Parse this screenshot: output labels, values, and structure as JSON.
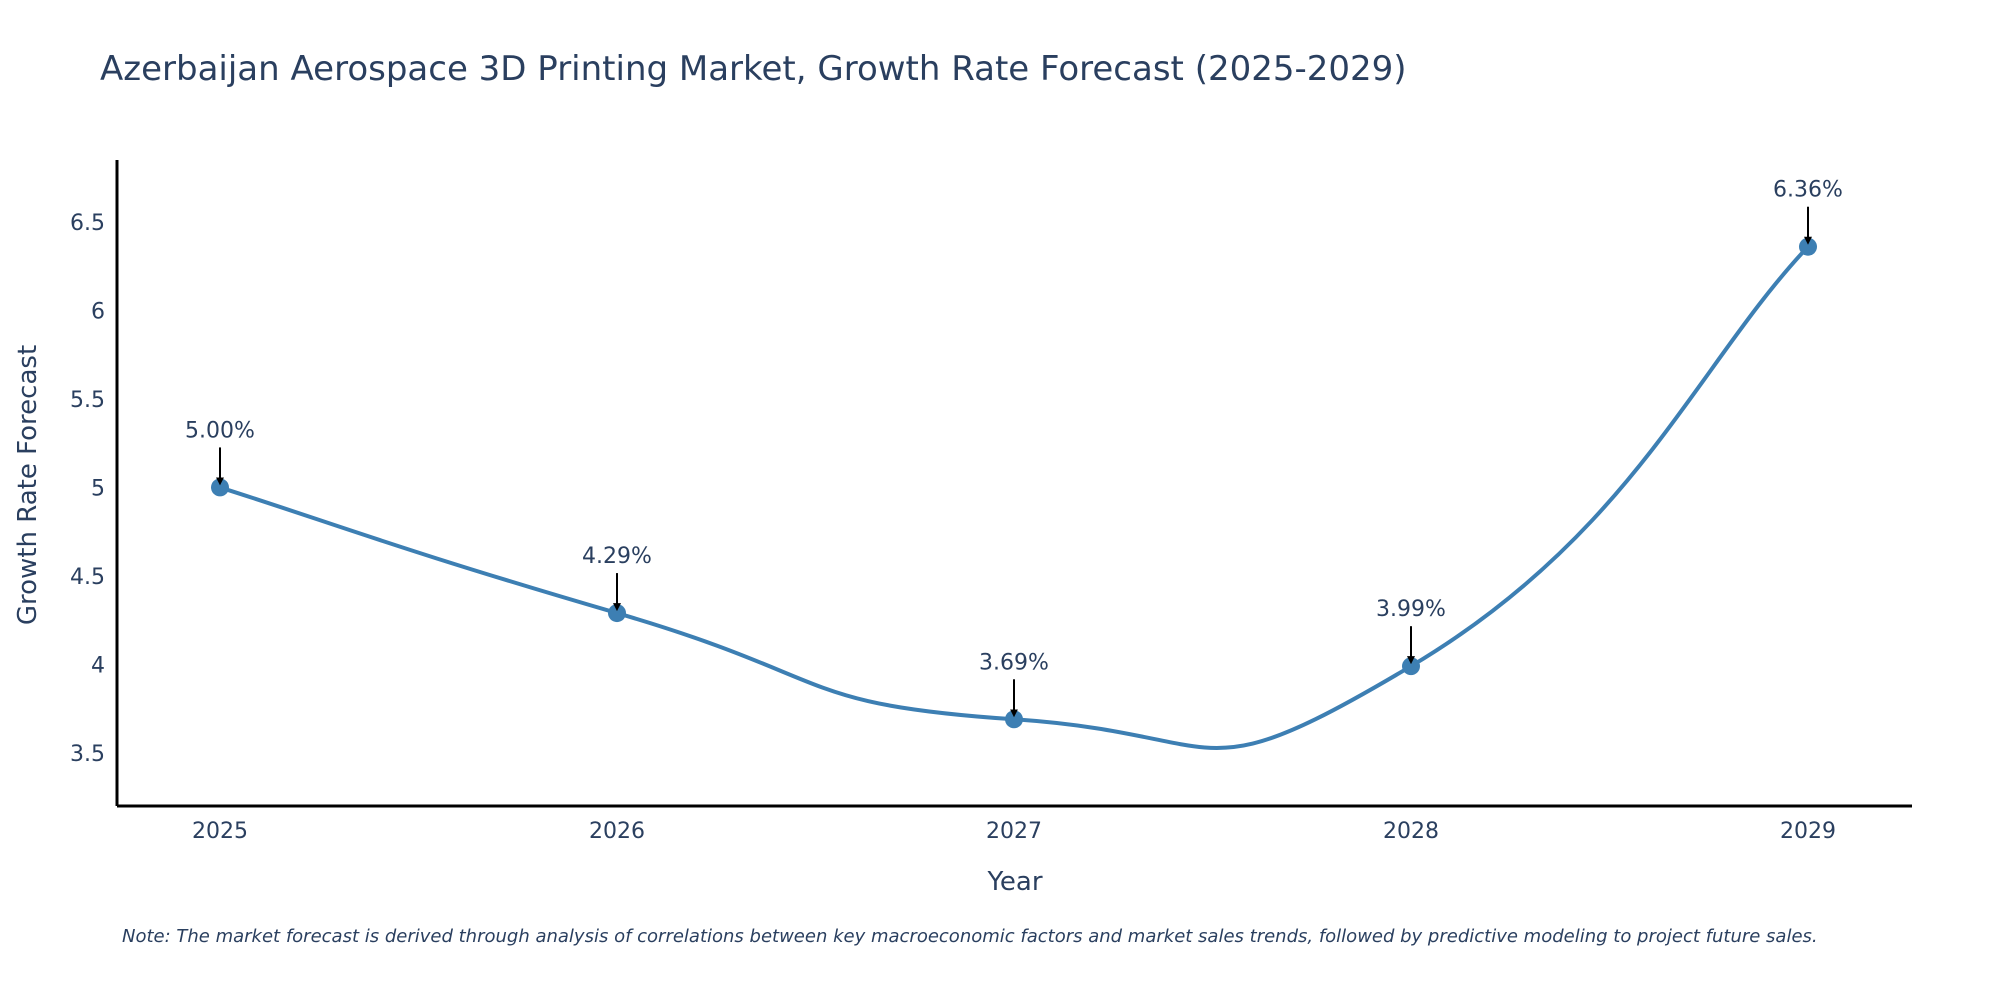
{
  "chart_data": {
    "type": "line",
    "title": "Azerbaijan Aerospace 3D Printing Market, Growth Rate Forecast (2025-2029)",
    "xlabel": "Year",
    "ylabel": "Growth Rate Forecast",
    "x": [
      "2025",
      "2026",
      "2027",
      "2028",
      "2029"
    ],
    "series": [
      {
        "name": "Growth Rate Forecast",
        "values": [
          5.0,
          4.29,
          3.69,
          3.99,
          6.36
        ],
        "labels": [
          "5.00%",
          "4.29%",
          "3.69%",
          "3.99%",
          "6.36%"
        ]
      }
    ],
    "yticks": [
      3.5,
      4,
      4.5,
      5,
      5.5,
      6,
      6.5
    ],
    "ytick_labels": [
      "3.5",
      "4",
      "4.5",
      "5",
      "5.5",
      "6",
      "6.5"
    ],
    "ylim": [
      3.2,
      6.85
    ],
    "grid": false,
    "line_color": "#3d7fb3",
    "marker_color": "#3d7fb3",
    "arrow_color": "#000000",
    "note": "Note: The market forecast is derived through analysis of correlations between key macroeconomic factors and market sales trends, followed by predictive modeling to project future sales."
  }
}
